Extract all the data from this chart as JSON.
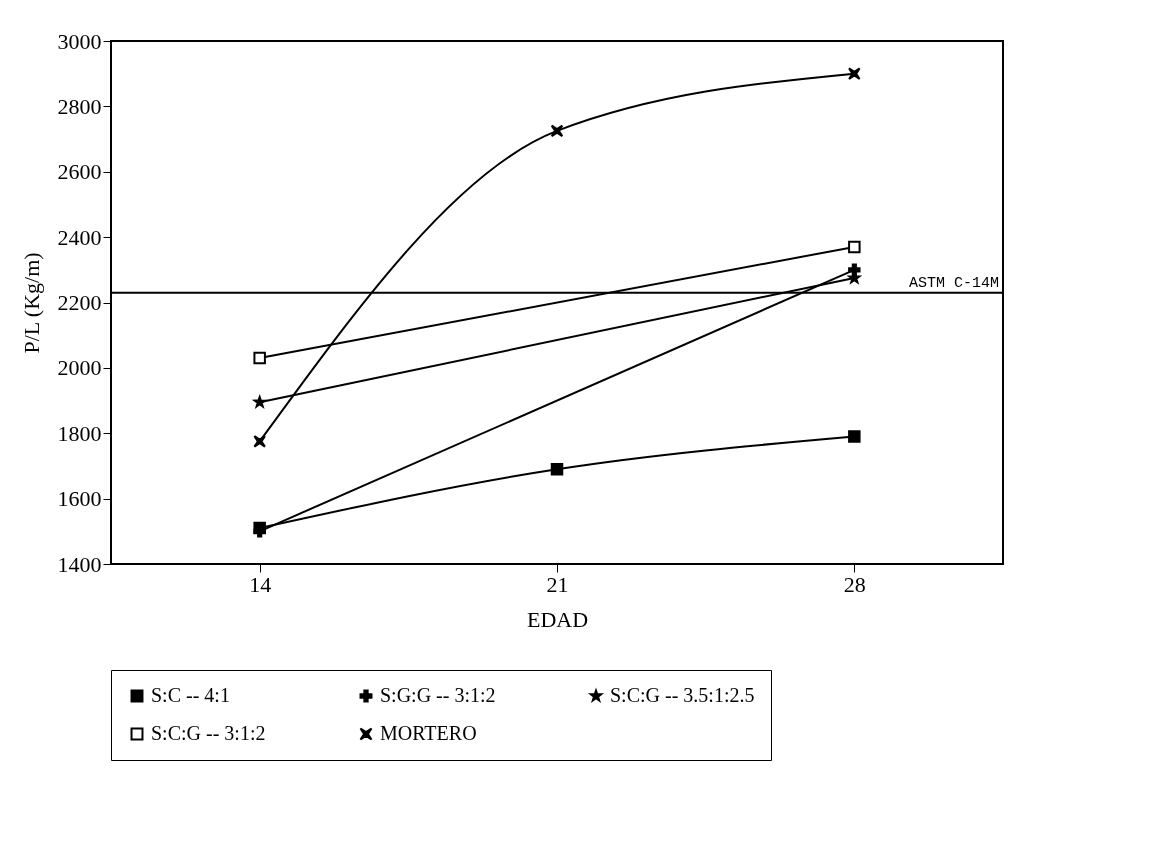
{
  "chart_data": {
    "type": "line",
    "xlabel": "EDAD",
    "ylabel": "P/L (Kg/m)",
    "x": [
      14,
      21,
      28
    ],
    "xlim": [
      10.5,
      31.5
    ],
    "xticks": [
      14,
      21,
      28
    ],
    "ylim": [
      1400,
      3000
    ],
    "yticks": [
      1400,
      1600,
      1800,
      2000,
      2200,
      2400,
      2600,
      2800,
      3000
    ],
    "grid": false,
    "legend": "bottom",
    "series": [
      {
        "name": "S:C -- 4:1",
        "color": "#000000",
        "marker": "square",
        "values": [
          1510,
          1690,
          1790
        ]
      },
      {
        "name": "S:G:G -- 3:1:2",
        "color": "#000000",
        "marker": "plus",
        "values": [
          1500,
          null,
          2300
        ]
      },
      {
        "name": "S:C:G -- 3.5:1:2.5",
        "color": "#000000",
        "marker": "star",
        "values": [
          1895,
          null,
          2275
        ]
      },
      {
        "name": "S:C:G -- 3:1:2",
        "color": "#000000",
        "marker": "square-open",
        "values": [
          2030,
          null,
          2370
        ]
      },
      {
        "name": "MORTERO",
        "color": "#000000",
        "marker": "cross",
        "values": [
          1775,
          2725,
          2900
        ]
      }
    ],
    "ref_lines": [
      {
        "axis": "y",
        "value": 2230,
        "label": "ASTM C-14M",
        "color": "#000000"
      }
    ]
  }
}
